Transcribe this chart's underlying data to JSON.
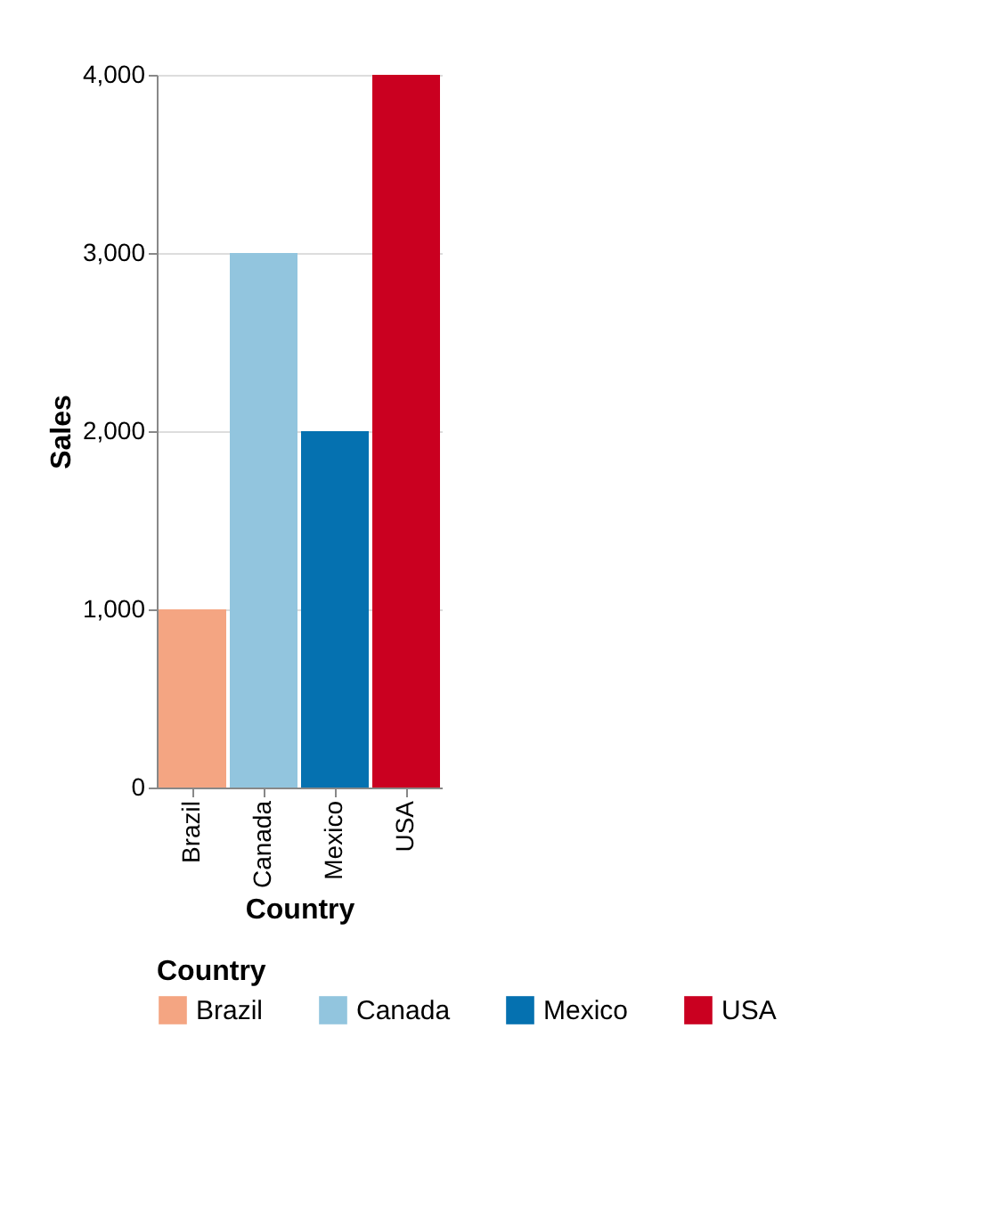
{
  "chart_data": {
    "type": "bar",
    "xlabel": "Country",
    "ylabel": "Sales",
    "legend_title": "Country",
    "categories": [
      "Brazil",
      "Canada",
      "Mexico",
      "USA"
    ],
    "series": [
      {
        "name": "Brazil",
        "color": "#f4a582",
        "values": [
          1000,
          null,
          null,
          null
        ]
      },
      {
        "name": "Canada",
        "color": "#92c5de",
        "values": [
          null,
          3000,
          null,
          null
        ]
      },
      {
        "name": "Mexico",
        "color": "#0571b0",
        "values": [
          null,
          null,
          2000,
          null
        ]
      },
      {
        "name": "USA",
        "color": "#ca0020",
        "values": [
          null,
          null,
          null,
          4000
        ]
      }
    ],
    "ylim": [
      0,
      4000
    ],
    "yticks": [
      0,
      {
        "value": 1000,
        "label": "1,000"
      },
      {
        "value": 2000,
        "label": "2,000"
      },
      {
        "value": 3000,
        "label": "3,000"
      },
      {
        "value": 4000,
        "label": "4,000"
      }
    ],
    "grid": "y",
    "legend": "bottom"
  }
}
